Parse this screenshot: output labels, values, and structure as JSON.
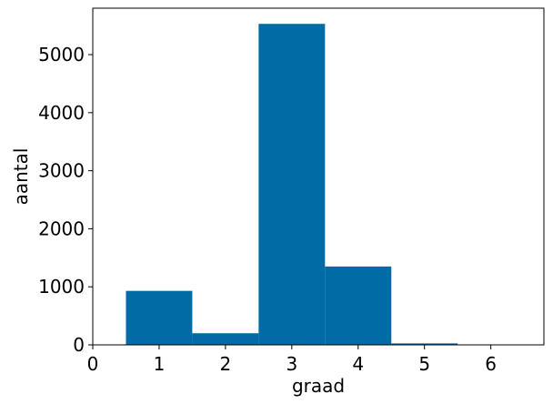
{
  "chart_data": {
    "type": "bar",
    "title": "",
    "xlabel": "graad",
    "ylabel": "aantal",
    "bars": [
      {
        "x_start": 0.5,
        "x_end": 1.5,
        "value": 930
      },
      {
        "x_start": 1.5,
        "x_end": 2.5,
        "value": 200
      },
      {
        "x_start": 2.5,
        "x_end": 3.5,
        "value": 5530
      },
      {
        "x_start": 3.5,
        "x_end": 4.5,
        "value": 1350
      },
      {
        "x_start": 4.5,
        "x_end": 5.5,
        "value": 25
      },
      {
        "x_start": 5.5,
        "x_end": 6.5,
        "value": 3
      }
    ],
    "xlim": [
      0,
      6.8
    ],
    "ylim": [
      0,
      5800
    ],
    "x_ticks": [
      0,
      1,
      2,
      3,
      4,
      5,
      6
    ],
    "y_ticks": [
      0,
      1000,
      2000,
      3000,
      4000,
      5000
    ],
    "grid": false,
    "bar_color": "#006ba4"
  }
}
